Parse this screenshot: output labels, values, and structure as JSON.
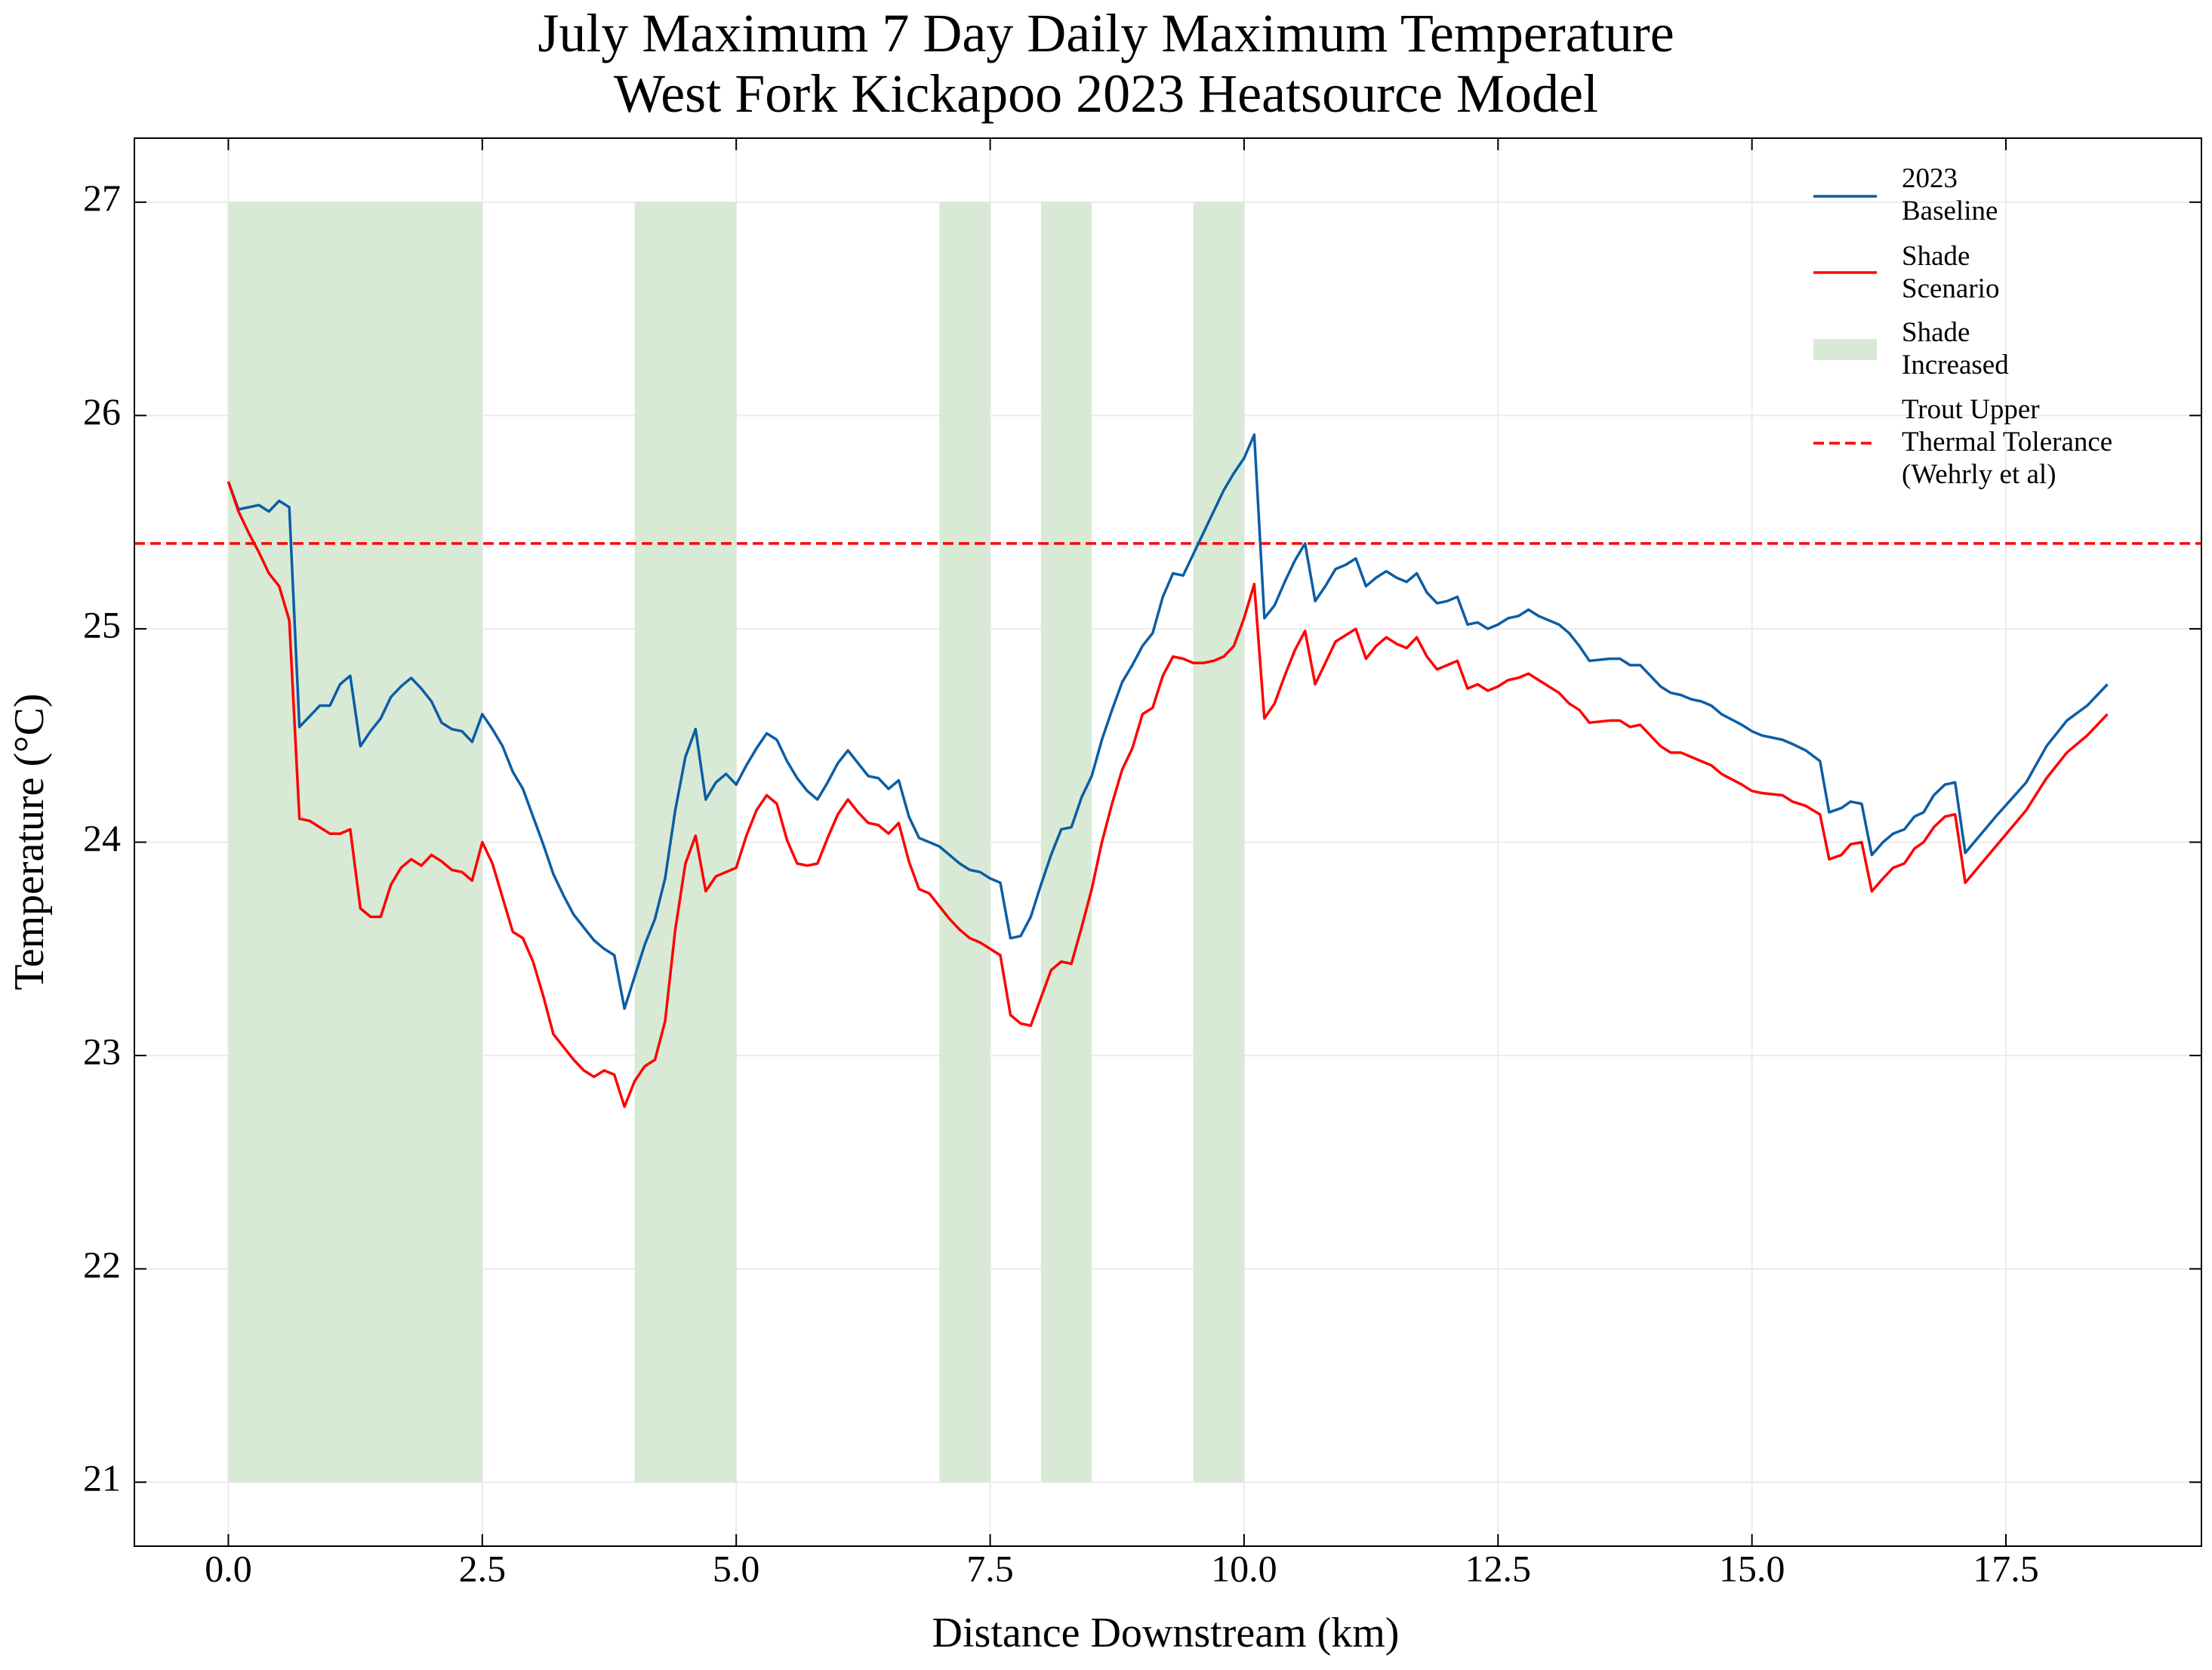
{
  "chart_data": {
    "type": "line",
    "title": "July Maximum 7 Day Daily Maximum Temperature\nWest Fork Kickapoo 2023 Heatsource Model",
    "x_label": "Distance Downstream (km)",
    "y_label": "Temperature (°C)",
    "xlim": [
      -0.925,
      19.425
    ],
    "ylim": [
      20.7,
      27.3
    ],
    "xticks": [
      {
        "value": 0,
        "label": "0.0"
      },
      2.5,
      {
        "value": 5,
        "label": "5.0"
      },
      7.5,
      {
        "value": 10,
        "label": "10.0"
      },
      12.5,
      {
        "value": 15,
        "label": "15.0"
      },
      17.5
    ],
    "yticks": [
      21,
      22,
      23,
      24,
      25,
      26,
      27
    ],
    "grid": true,
    "legend": "upper right",
    "x": [
      0,
      0.1,
      0.2,
      0.3,
      0.4,
      0.5,
      0.6,
      0.7,
      0.8,
      0.9,
      1.0,
      1.1,
      1.2,
      1.3,
      1.4,
      1.5,
      1.6,
      1.7,
      1.8,
      1.9,
      2.0,
      2.1,
      2.2,
      2.3,
      2.4,
      2.5,
      2.6,
      2.7,
      2.8,
      2.9,
      3.0,
      3.1,
      3.2,
      3.3,
      3.4,
      3.5,
      3.6,
      3.7,
      3.8,
      3.9,
      4.0,
      4.1,
      4.2,
      4.3,
      4.4,
      4.5,
      4.6,
      4.7,
      4.8,
      4.9,
      5.0,
      5.1,
      5.2,
      5.3,
      5.4,
      5.5,
      5.6,
      5.7,
      5.8,
      5.9,
      6.0,
      6.1,
      6.2,
      6.3,
      6.4,
      6.5,
      6.6,
      6.7,
      6.8,
      6.9,
      7.0,
      7.1,
      7.2,
      7.3,
      7.4,
      7.5,
      7.6,
      7.7,
      7.8,
      7.9,
      8.0,
      8.1,
      8.2,
      8.3,
      8.4,
      8.5,
      8.6,
      8.7,
      8.8,
      8.9,
      9.0,
      9.1,
      9.2,
      9.3,
      9.4,
      9.5,
      9.6,
      9.7,
      9.8,
      9.9,
      10.0,
      10.1,
      10.2,
      10.3,
      10.4,
      10.5,
      10.6,
      10.7,
      10.8,
      10.9,
      11.0,
      11.1,
      11.2,
      11.3,
      11.4,
      11.5,
      11.6,
      11.7,
      11.8,
      11.9,
      12.0,
      12.1,
      12.2,
      12.3,
      12.4,
      12.5,
      12.6,
      12.7,
      12.8,
      12.9,
      13.0,
      13.1,
      13.2,
      13.3,
      13.4,
      13.6,
      13.7,
      13.8,
      13.9,
      14.0,
      14.1,
      14.2,
      14.3,
      14.4,
      14.5,
      14.6,
      14.7,
      14.9,
      15.0,
      15.1,
      15.3,
      15.4,
      15.53,
      15.67,
      15.76,
      15.88,
      15.97,
      16.08,
      16.18,
      16.29,
      16.39,
      16.5,
      16.6,
      16.69,
      16.79,
      16.9,
      17.0,
      17.1,
      17.4,
      17.7,
      17.9,
      18.1,
      18.3,
      18.5
    ],
    "series": [
      {
        "name": "2023\nBaseline",
        "color": "#0c5da5",
        "values": [
          25.69,
          25.56,
          25.57,
          25.58,
          25.55,
          25.6,
          25.57,
          24.54,
          24.59,
          24.64,
          24.64,
          24.74,
          24.78,
          24.45,
          24.52,
          24.58,
          24.68,
          24.73,
          24.77,
          24.72,
          24.66,
          24.56,
          24.53,
          24.52,
          24.47,
          24.6,
          24.53,
          24.45,
          24.33,
          24.25,
          24.12,
          23.99,
          23.85,
          23.75,
          23.66,
          23.6,
          23.54,
          23.5,
          23.47,
          23.22,
          23.37,
          23.52,
          23.64,
          23.83,
          24.15,
          24.4,
          24.53,
          24.2,
          24.28,
          24.32,
          24.27,
          24.36,
          24.44,
          24.51,
          24.48,
          24.38,
          24.3,
          24.24,
          24.2,
          24.28,
          24.37,
          24.43,
          24.37,
          24.31,
          24.3,
          24.25,
          24.29,
          24.12,
          24.02,
          24.0,
          23.98,
          23.94,
          23.9,
          23.87,
          23.86,
          23.83,
          23.81,
          23.55,
          23.56,
          23.65,
          23.8,
          23.94,
          24.06,
          24.07,
          24.21,
          24.31,
          24.48,
          24.62,
          24.75,
          24.83,
          24.92,
          24.98,
          25.15,
          25.26,
          25.25,
          25.35,
          25.45,
          25.55,
          25.65,
          25.73,
          25.8,
          25.91,
          25.05,
          25.11,
          25.22,
          25.32,
          25.4,
          25.13,
          25.2,
          25.28,
          25.3,
          25.33,
          25.2,
          25.24,
          25.27,
          25.24,
          25.22,
          25.26,
          25.17,
          25.12,
          25.13,
          25.15,
          25.02,
          25.03,
          25.0,
          25.02,
          25.05,
          25.06,
          25.09,
          25.06,
          25.04,
          25.02,
          24.98,
          24.92,
          24.85,
          24.86,
          24.86,
          24.83,
          24.83,
          24.78,
          24.73,
          24.7,
          24.69,
          24.67,
          24.66,
          24.64,
          24.6,
          24.55,
          24.52,
          24.5,
          24.48,
          24.46,
          24.43,
          24.38,
          24.14,
          24.16,
          24.19,
          24.18,
          23.94,
          24.0,
          24.04,
          24.06,
          24.12,
          24.14,
          24.22,
          24.27,
          24.28,
          23.95,
          24.12,
          24.28,
          24.45,
          24.57,
          24.64,
          24.74
        ]
      },
      {
        "name": "Shade\nScenario",
        "color": "#ff0000",
        "values": [
          25.69,
          25.55,
          25.45,
          25.36,
          25.26,
          25.2,
          25.04,
          24.11,
          24.1,
          24.07,
          24.04,
          24.04,
          24.06,
          23.69,
          23.65,
          23.65,
          23.8,
          23.88,
          23.92,
          23.89,
          23.94,
          23.91,
          23.87,
          23.86,
          23.82,
          24.0,
          23.9,
          23.74,
          23.58,
          23.55,
          23.44,
          23.28,
          23.1,
          23.04,
          22.98,
          22.93,
          22.9,
          22.93,
          22.91,
          22.76,
          22.88,
          22.95,
          22.98,
          23.16,
          23.59,
          23.9,
          24.03,
          23.77,
          23.84,
          23.86,
          23.88,
          24.03,
          24.15,
          24.22,
          24.18,
          24.01,
          23.9,
          23.89,
          23.9,
          24.02,
          24.13,
          24.2,
          24.14,
          24.09,
          24.08,
          24.04,
          24.09,
          23.91,
          23.78,
          23.76,
          23.7,
          23.64,
          23.59,
          23.55,
          23.53,
          23.5,
          23.47,
          23.19,
          23.15,
          23.14,
          23.27,
          23.4,
          23.44,
          23.43,
          23.6,
          23.78,
          24.0,
          24.18,
          24.34,
          24.44,
          24.6,
          24.63,
          24.78,
          24.87,
          24.86,
          24.84,
          24.84,
          24.85,
          24.87,
          24.92,
          25.05,
          25.21,
          24.58,
          24.65,
          24.78,
          24.9,
          24.99,
          24.74,
          24.84,
          24.94,
          24.97,
          25.0,
          24.86,
          24.92,
          24.96,
          24.93,
          24.91,
          24.96,
          24.87,
          24.81,
          24.83,
          24.85,
          24.72,
          24.74,
          24.71,
          24.73,
          24.76,
          24.77,
          24.79,
          24.76,
          24.73,
          24.7,
          24.65,
          24.62,
          24.56,
          24.57,
          24.57,
          24.54,
          24.55,
          24.5,
          24.45,
          24.42,
          24.42,
          24.4,
          24.38,
          24.36,
          24.32,
          24.27,
          24.24,
          24.23,
          24.22,
          24.19,
          24.17,
          24.13,
          23.92,
          23.94,
          23.99,
          24.0,
          23.77,
          23.83,
          23.88,
          23.9,
          23.97,
          24.0,
          24.07,
          24.12,
          24.13,
          23.81,
          23.98,
          24.15,
          24.3,
          24.42,
          24.5,
          24.6
        ]
      }
    ],
    "spans": {
      "name": "Shade\nIncreased",
      "color": "#d8ead6",
      "regions": [
        {
          "x": [
            0,
            2.5
          ],
          "y": [
            21,
            27
          ]
        },
        {
          "x": [
            4,
            5
          ],
          "y": [
            21,
            27
          ]
        },
        {
          "x": [
            7,
            7.5
          ],
          "y": [
            21,
            27
          ]
        },
        {
          "x": [
            8,
            8.5
          ],
          "y": [
            21,
            27
          ]
        },
        {
          "x": [
            9.5,
            10
          ],
          "y": [
            21,
            27
          ]
        }
      ]
    },
    "reference_line": {
      "name": "Trout Upper\nThermal Tolerance\n(Wehrly et al)",
      "y": 25.4,
      "color": "#ff0000",
      "dashed": true
    }
  }
}
